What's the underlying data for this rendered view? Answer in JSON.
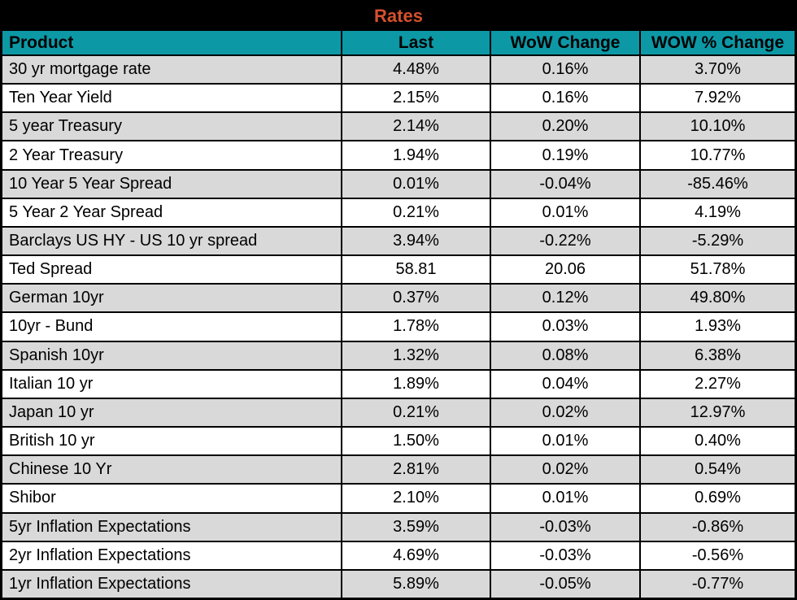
{
  "chart_data": {
    "type": "table",
    "title": "Rates",
    "columns": [
      "Product",
      "Last",
      "WoW Change",
      "WOW % Change"
    ],
    "rows": [
      [
        "30 yr mortgage rate",
        "4.48%",
        "0.16%",
        "3.70%"
      ],
      [
        "Ten Year Yield",
        "2.15%",
        "0.16%",
        "7.92%"
      ],
      [
        "5 year Treasury",
        "2.14%",
        "0.20%",
        "10.10%"
      ],
      [
        "2 Year Treasury",
        "1.94%",
        "0.19%",
        "10.77%"
      ],
      [
        "10 Year 5 Year Spread",
        "0.01%",
        "-0.04%",
        "-85.46%"
      ],
      [
        "5 Year 2 Year Spread",
        "0.21%",
        "0.01%",
        "4.19%"
      ],
      [
        "Barclays US HY - US 10 yr spread",
        "3.94%",
        "-0.22%",
        "-5.29%"
      ],
      [
        "Ted Spread",
        "58.81",
        "20.06",
        "51.78%"
      ],
      [
        "German 10yr",
        "0.37%",
        "0.12%",
        "49.80%"
      ],
      [
        "10yr - Bund",
        "1.78%",
        "0.03%",
        "1.93%"
      ],
      [
        "Spanish 10yr",
        "1.32%",
        "0.08%",
        "6.38%"
      ],
      [
        "Italian 10 yr",
        "1.89%",
        "0.04%",
        "2.27%"
      ],
      [
        "Japan 10 yr",
        "0.21%",
        "0.02%",
        "12.97%"
      ],
      [
        "British 10 yr",
        "1.50%",
        "0.01%",
        "0.40%"
      ],
      [
        "Chinese 10 Yr",
        "2.81%",
        "0.02%",
        "0.54%"
      ],
      [
        "Shibor",
        "2.10%",
        "0.01%",
        "0.69%"
      ],
      [
        "5yr Inflation Expectations",
        "3.59%",
        "-0.03%",
        "-0.86%"
      ],
      [
        "2yr Inflation Expectations",
        "4.69%",
        "-0.03%",
        "-0.56%"
      ],
      [
        "1yr Inflation Expectations",
        "5.89%",
        "-0.05%",
        "-0.77%"
      ]
    ],
    "layout": {
      "row_striping": "first row shaded, alternating",
      "product_align": "left",
      "value_align": "center"
    }
  },
  "colors": {
    "title_text": "#d5502d",
    "title_bg": "#000000",
    "header_bg": "#0d98a6",
    "header_text": "#000000",
    "row_even_bg": "#d9d9d9",
    "row_odd_bg": "#ffffff",
    "grid_line": "#000000"
  }
}
